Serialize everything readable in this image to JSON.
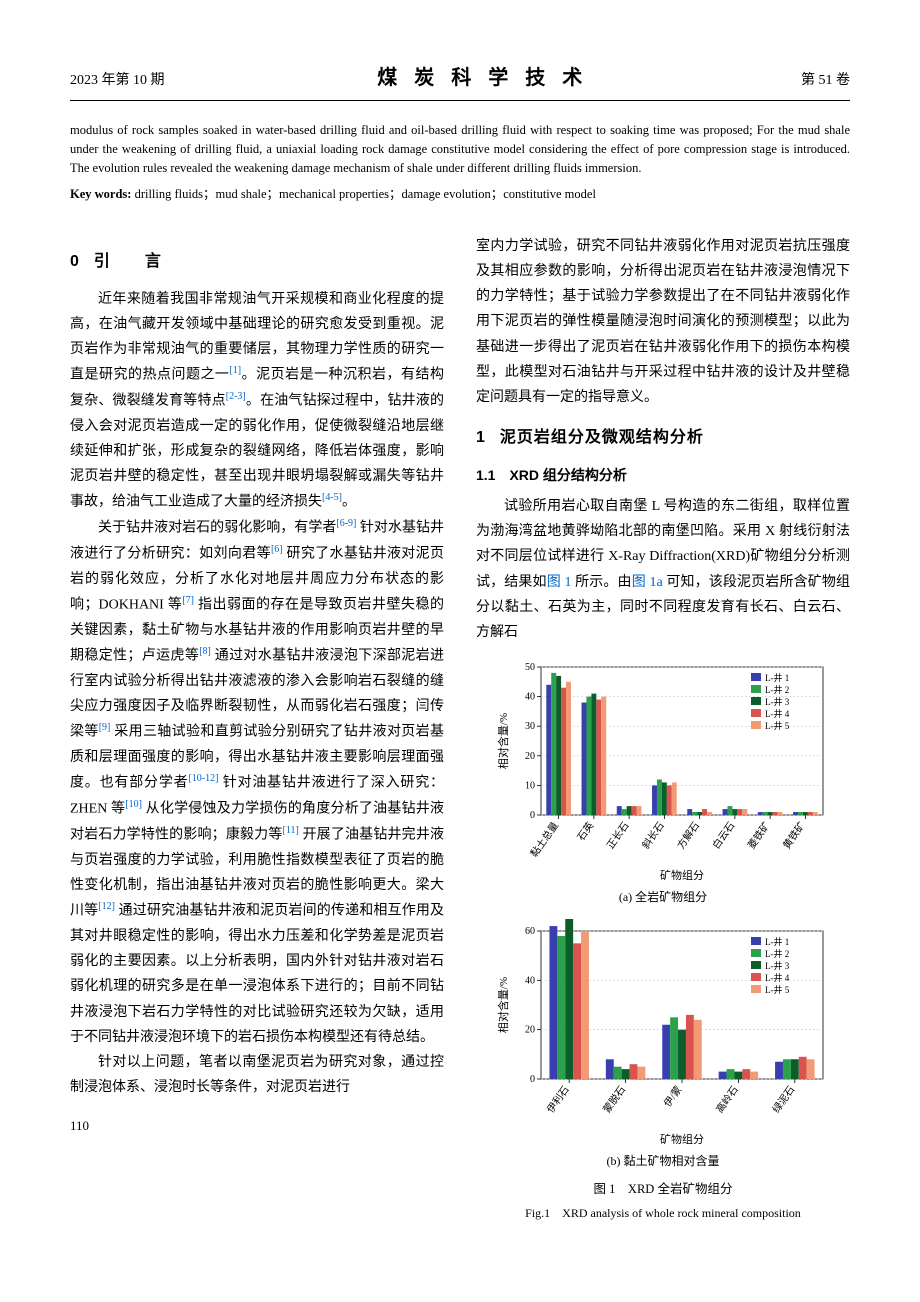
{
  "header": {
    "left": "2023 年第 10 期",
    "center": "煤 炭 科 学 技 术",
    "right": "第 51 卷"
  },
  "abstract_en": "modulus of rock samples soaked in water-based drilling fluid and oil-based drilling fluid with respect to soaking time was proposed; For the mud shale under the weakening of drilling fluid, a uniaxial loading rock damage constitutive model considering the effect of pore compression stage is introduced. The evolution rules revealed the weakening damage mechanism of shale under different drilling fluids immersion.",
  "keywords_label": "Key words:",
  "keywords_en": " drilling fluids；mud shale；mechanical properties；damage evolution；constitutive model",
  "sec0_title": "引　　言",
  "sec0_num": "0",
  "para_l1_a": "近年来随着我国非常规油气开采规模和商业化程度的提高，在油气藏开发领域中基础理论的研究愈发受到重视。泥页岩作为非常规油气的重要储层，其物理力学性质的研究一直是研究的热点问题之一",
  "para_l1_b": "。泥页岩是一种沉积岩，有结构复杂、微裂缝发育等特点",
  "para_l1_c": "。在油气钻探过程中，钻井液的侵入会对泥页岩造成一定的弱化作用，促使微裂缝沿地层继续延伸和扩张，形成复杂的裂缝网络，降低岩体强度，影响泥页岩井壁的稳定性，甚至出现井眼坍塌裂解或漏失等钻井事故，给油气工业造成了大量的经济损失",
  "para_l1_d": "。",
  "para_l2_a": "关于钻井液对岩石的弱化影响，有学者",
  "para_l2_b": " 针对水基钻井液进行了分析研究：如刘向君等",
  "para_l2_c": " 研究了水基钻井液对泥页岩的弱化效应，分析了水化对地层井周应力分布状态的影响；DOKHANI 等",
  "para_l2_d": " 指出弱面的存在是导致页岩井壁失稳的关键因素，黏土矿物与水基钻井液的作用影响页岩井壁的早期稳定性；卢运虎等",
  "para_l2_e": " 通过对水基钻井液浸泡下深部泥岩进行室内试验分析得出钻井液滤液的渗入会影响岩石裂缝的缝尖应力强度因子及临界断裂韧性，从而弱化岩石强度；闫传梁等",
  "para_l2_f": " 采用三轴试验和直剪试验分别研究了钻井液对页岩基质和层理面强度的影响，得出水基钻井液主要影响层理面强度。也有部分学者",
  "para_l2_g": " 针对油基钻井液进行了深入研究：ZHEN 等",
  "para_l2_h": " 从化学侵蚀及力学损伤的角度分析了油基钻井液对岩石力学特性的影响；康毅力等",
  "para_l2_i": " 开展了油基钻井完井液与页岩强度的力学试验，利用脆性指数模型表征了页岩的脆性变化机制，指出油基钻井液对页岩的脆性影响更大。梁大川等",
  "para_l2_j": " 通过研究油基钻井液和泥页岩间的传递和相互作用及其对井眼稳定性的影响，得出水力压差和化学势差是泥页岩弱化的主要因素。以上分析表明，国内外针对钻井液对岩石弱化机理的研究多是在单一浸泡体系下进行的；目前不同钻井液浸泡下岩石力学特性的对比试验研究还较为欠缺，适用于不同钻井液浸泡环境下的岩石损伤本构模型还有待总结。",
  "para_l3": "针对以上问题，笔者以南堡泥页岩为研究对象，通过控制浸泡体系、浸泡时长等条件，对泥页岩进行",
  "para_r1": "室内力学试验，研究不同钻井液弱化作用对泥页岩抗压强度及其相应参数的影响，分析得出泥页岩在钻井液浸泡情况下的力学特性；基于试验力学参数提出了在不同钻井液弱化作用下泥页岩的弹性模量随浸泡时间演化的预测模型；以此为基础进一步得出了泥页岩在钻井液弱化作用下的损伤本构模型，此模型对石油钻井与开采过程中钻井液的设计及井壁稳定问题具有一定的指导意义。",
  "sec1_title": "泥页岩组分及微观结构分析",
  "sec1_num": "1",
  "sec11_title": "1.1　XRD 组分结构分析",
  "para_r2_a": "试验所用岩心取自南堡 L 号构造的东二街组，取样位置为渤海湾盆地黄骅坳陷北部的南堡凹陷。采用 X 射线衍射法对不同层位试样进行 X-Ray Diffraction(XRD)矿物组分分析测试，结果如",
  "para_r2_b": "图 1",
  "para_r2_c": " 所示。由",
  "para_r2_d": "图 1a",
  "para_r2_e": " 可知，该段泥页岩所含矿物组分以黏土、石英为主，同时不同程度发育有长石、白云石、方解石",
  "ref1": "[1]",
  "ref23": "[2-3]",
  "ref45": "[4-5]",
  "ref69": "[6-9]",
  "ref6": "[6]",
  "ref7": "[7]",
  "ref8": "[8]",
  "ref9": "[9]",
  "ref1012": "[10-12]",
  "ref10": "[10]",
  "ref11": "[11]",
  "ref12": "[12]",
  "page_number": "110",
  "chart_a": {
    "type": "grouped-bar",
    "categories": [
      "黏土总量",
      "石英",
      "正长石",
      "斜长石",
      "方解石",
      "白云石",
      "菱铁矿",
      "黄铁矿"
    ],
    "series_labels": [
      "L-井 1",
      "L-井 2",
      "L-井 3",
      "L-井 4",
      "L-井 5"
    ],
    "series_colors": [
      "#3a3fb0",
      "#2aa14a",
      "#0b5d2a",
      "#d9534f",
      "#f29a76"
    ],
    "values": [
      [
        44,
        48,
        47,
        43,
        45
      ],
      [
        38,
        40,
        41,
        39,
        40
      ],
      [
        3,
        2,
        3,
        3,
        3
      ],
      [
        10,
        12,
        11,
        10,
        11
      ],
      [
        2,
        1,
        1,
        2,
        1
      ],
      [
        2,
        3,
        2,
        2,
        2
      ],
      [
        1,
        1,
        1,
        1,
        1
      ],
      [
        1,
        1,
        1,
        1,
        1
      ]
    ],
    "ylabel": "相对含量/%",
    "ylim": [
      0,
      50
    ],
    "ytick_step": 10,
    "xaxis_label": "矿物组分",
    "caption": "(a) 全岩矿物组分",
    "bg": "#ffffff",
    "grid": "#bfbfbf",
    "tick_fontsize": 10,
    "label_fontsize": 11
  },
  "chart_b": {
    "type": "grouped-bar",
    "categories": [
      "伊利石",
      "蒙脱石",
      "伊/蒙",
      "高岭石",
      "绿泥石"
    ],
    "series_labels": [
      "L-井 1",
      "L-井 2",
      "L-井 3",
      "L-井 4",
      "L-井 5"
    ],
    "series_colors": [
      "#3a3fb0",
      "#2aa14a",
      "#0b5d2a",
      "#d9534f",
      "#f29a76"
    ],
    "values": [
      [
        62,
        58,
        65,
        55,
        60
      ],
      [
        8,
        5,
        4,
        6,
        5
      ],
      [
        22,
        25,
        20,
        26,
        24
      ],
      [
        3,
        4,
        3,
        4,
        3
      ],
      [
        7,
        8,
        8,
        9,
        8
      ]
    ],
    "ylabel": "相对含量/%",
    "ylim": [
      0,
      60
    ],
    "ytick_step": 20,
    "xaxis_label": "矿物组分",
    "caption": "(b) 黏土矿物相对含量",
    "bg": "#ffffff",
    "grid": "#bfbfbf",
    "tick_fontsize": 10,
    "label_fontsize": 11
  },
  "fig1_cn": "图 1　XRD 全岩矿物组分",
  "fig1_en": "Fig.1　XRD analysis of whole rock mineral composition"
}
